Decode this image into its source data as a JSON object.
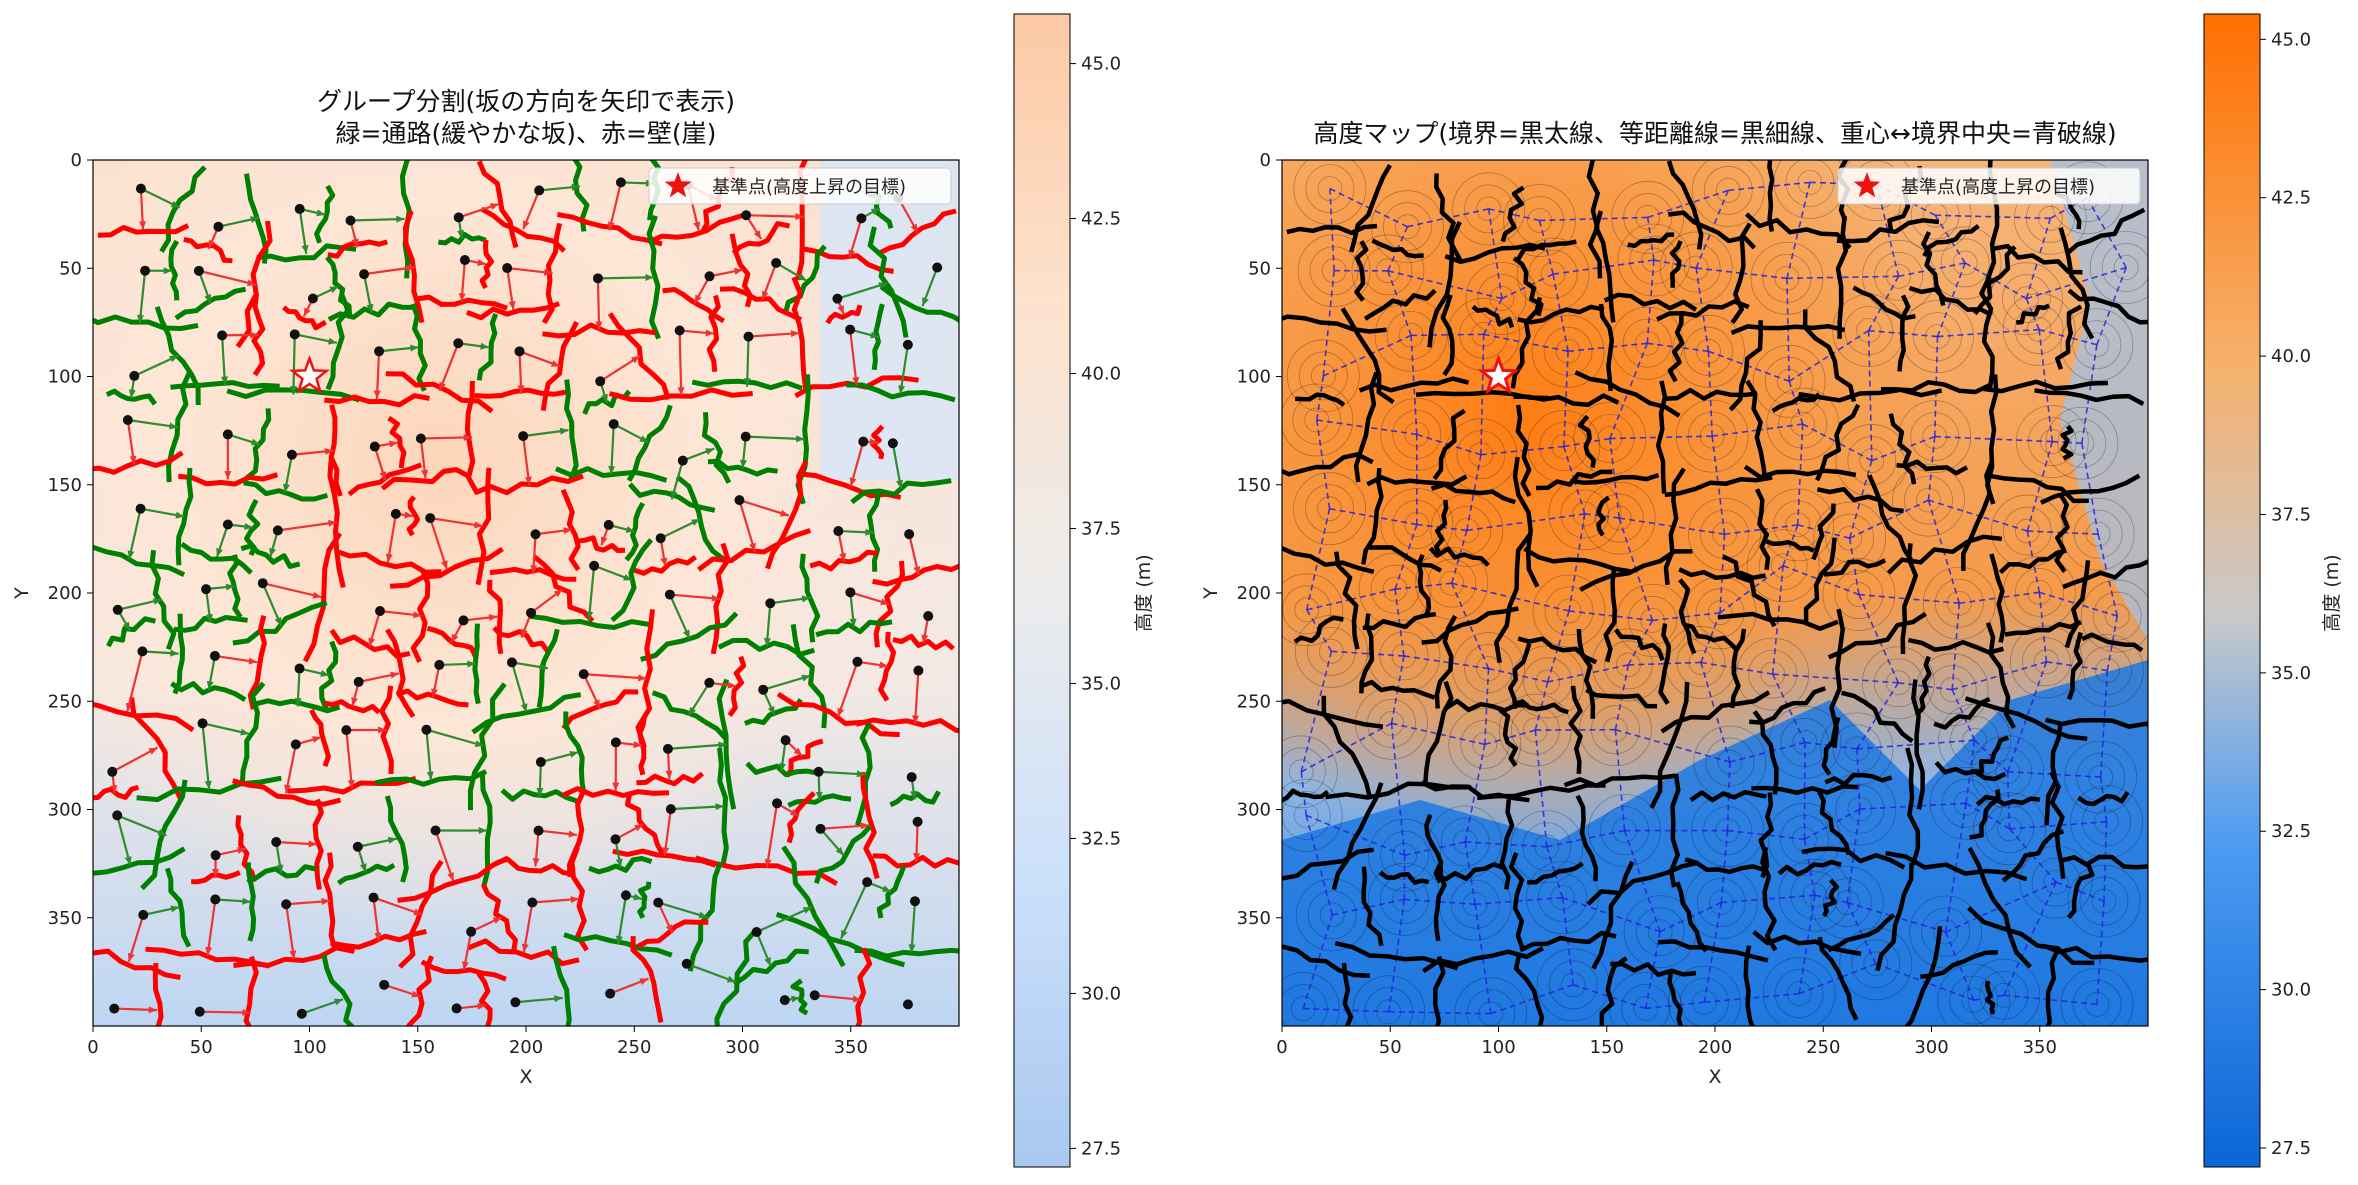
{
  "colors": {
    "pass": "#008000",
    "wall": "#ff0000",
    "arrow_pass": "#2e8b2e",
    "arrow_wall": "#ee3333",
    "boundary": "#000000",
    "link": "#2222dd",
    "star": "#ee1111"
  },
  "chart_data": [
    {
      "type": "heatmap",
      "title_line1": "グループ分割(坂の方向を矢印で表示)",
      "title_line2": "緑=通路(緩やかな坂)、赤=壁(崖)",
      "xlabel": "X",
      "ylabel": "Y",
      "xlim": [
        0,
        400
      ],
      "ylim": [
        400,
        0
      ],
      "xticks": [
        0,
        50,
        100,
        150,
        200,
        250,
        300,
        350
      ],
      "yticks": [
        0,
        50,
        100,
        150,
        200,
        250,
        300,
        350
      ],
      "legend_label": "基準点(高度上昇の目標)",
      "legend_position": "top-right",
      "reference_point": [
        100,
        100
      ],
      "colorbar": {
        "label": "高度 (m)",
        "range": [
          27.2,
          45.8
        ],
        "ticks": [
          "27.5",
          "30.0",
          "32.5",
          "35.0",
          "37.5",
          "40.0",
          "42.5",
          "45.0"
        ],
        "colormap": "light blue - light gray - light orange"
      }
    },
    {
      "type": "heatmap",
      "title": "高度マップ(境界=黒太線、等距離線=黒細線、重心↔境界中央=青破線)",
      "xlabel": "X",
      "ylabel": "Y",
      "xlim": [
        0,
        400
      ],
      "ylim": [
        400,
        0
      ],
      "xticks": [
        0,
        50,
        100,
        150,
        200,
        250,
        300,
        350
      ],
      "yticks": [
        0,
        50,
        100,
        150,
        200,
        250,
        300,
        350
      ],
      "legend_label": "基準点(高度上昇の目標)",
      "legend_position": "top-right",
      "reference_point": [
        100,
        100
      ],
      "colorbar": {
        "label": "高度 (m)",
        "range": [
          27.2,
          45.4
        ],
        "ticks": [
          "27.5",
          "30.0",
          "32.5",
          "35.0",
          "37.5",
          "40.0",
          "42.5",
          "45.0"
        ],
        "colormap": "saturated blue - gray - saturated orange"
      }
    }
  ]
}
